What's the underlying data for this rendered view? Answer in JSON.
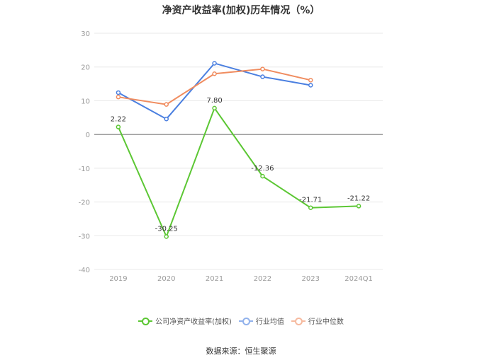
{
  "title": "净资产收益率(加权)历年情况（%）",
  "source": "数据来源：恒生聚源",
  "chart_data": {
    "type": "line",
    "title": "净资产收益率(加权)历年情况（%）",
    "categories": [
      "2019",
      "2020",
      "2021",
      "2022",
      "2023",
      "2024Q1"
    ],
    "ylim": [
      -40,
      30
    ],
    "yticks": [
      30,
      20,
      10,
      0,
      -10,
      -20,
      -30,
      -40
    ],
    "grid": true,
    "legend_position": "bottom",
    "series": [
      {
        "name": "公司净资产收益率(加权)",
        "color": "#5cc734",
        "values": [
          2.22,
          -30.25,
          7.8,
          -12.36,
          -21.71,
          -21.22
        ],
        "labels": [
          "2.22",
          "-30.25",
          "7.80",
          "-12.36",
          "-21.71",
          "-21.22"
        ]
      },
      {
        "name": "行业均值",
        "color": "#4a7fe0",
        "values": [
          12.4,
          4.6,
          21.1,
          17.1,
          14.6,
          null
        ]
      },
      {
        "name": "行业中位数",
        "color": "#f08c5f",
        "values": [
          11.1,
          8.9,
          18.0,
          19.4,
          16.1,
          null
        ]
      }
    ]
  }
}
